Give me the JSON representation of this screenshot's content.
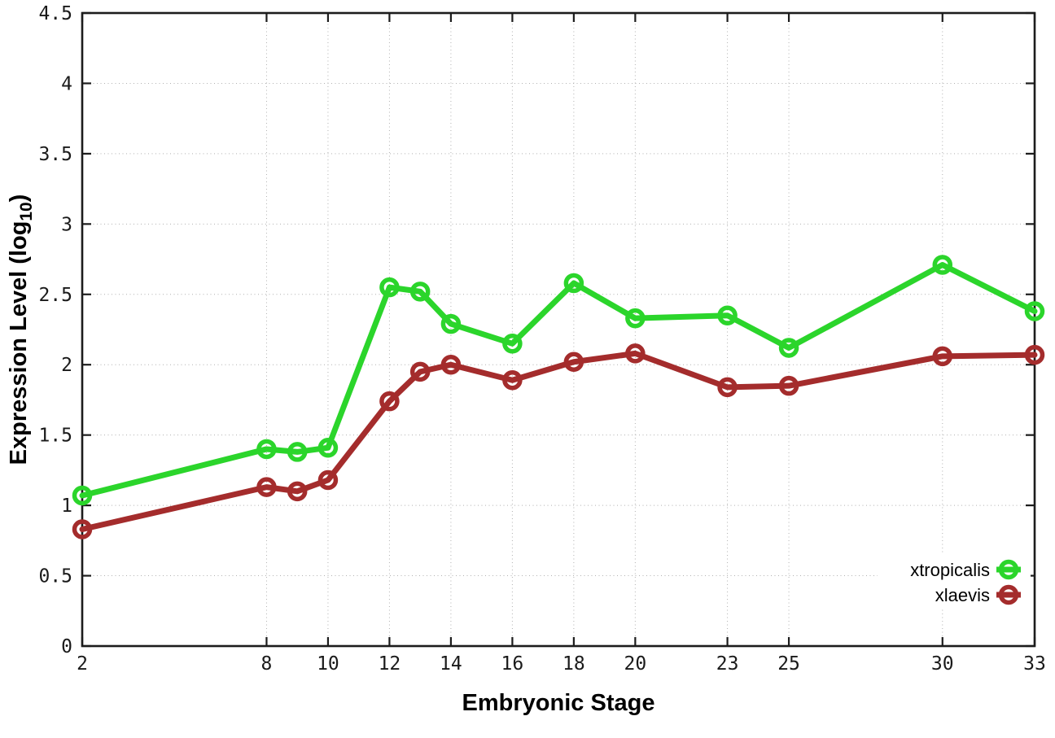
{
  "chart_data": {
    "type": "line",
    "title": "",
    "xlabel": "Embryonic Stage",
    "ylabel": "Expression Level (log10)",
    "ylabel_parts": [
      "Expression Level (log",
      "10",
      ")"
    ],
    "xlim": [
      2,
      33
    ],
    "ylim": [
      0,
      4.5
    ],
    "xticks": [
      2,
      8,
      10,
      12,
      14,
      16,
      18,
      20,
      23,
      25,
      30,
      33
    ],
    "yticks": [
      0,
      0.5,
      1,
      1.5,
      2,
      2.5,
      3,
      3.5,
      4,
      4.5
    ],
    "grid": true,
    "grid_style": "dotted",
    "legend_position": "bottom-right",
    "marker": "open-circle",
    "x": [
      2,
      8,
      9,
      10,
      12,
      13,
      14,
      16,
      18,
      20,
      23,
      25,
      30,
      33
    ],
    "series": [
      {
        "name": "xtropicalis",
        "color": "#2bd52b",
        "values": [
          1.07,
          1.4,
          1.38,
          1.41,
          2.55,
          2.52,
          2.29,
          2.15,
          2.58,
          2.33,
          2.35,
          2.12,
          2.71,
          2.38
        ]
      },
      {
        "name": "xlaevis",
        "color": "#a42c2c",
        "values": [
          0.83,
          1.13,
          1.1,
          1.18,
          1.74,
          1.95,
          2.0,
          1.89,
          2.02,
          2.08,
          1.84,
          1.85,
          2.06,
          2.07
        ]
      }
    ],
    "axis_color": "#1c1c1c",
    "grid_color": "#b0b0b0",
    "background_color": "#ffffff"
  }
}
